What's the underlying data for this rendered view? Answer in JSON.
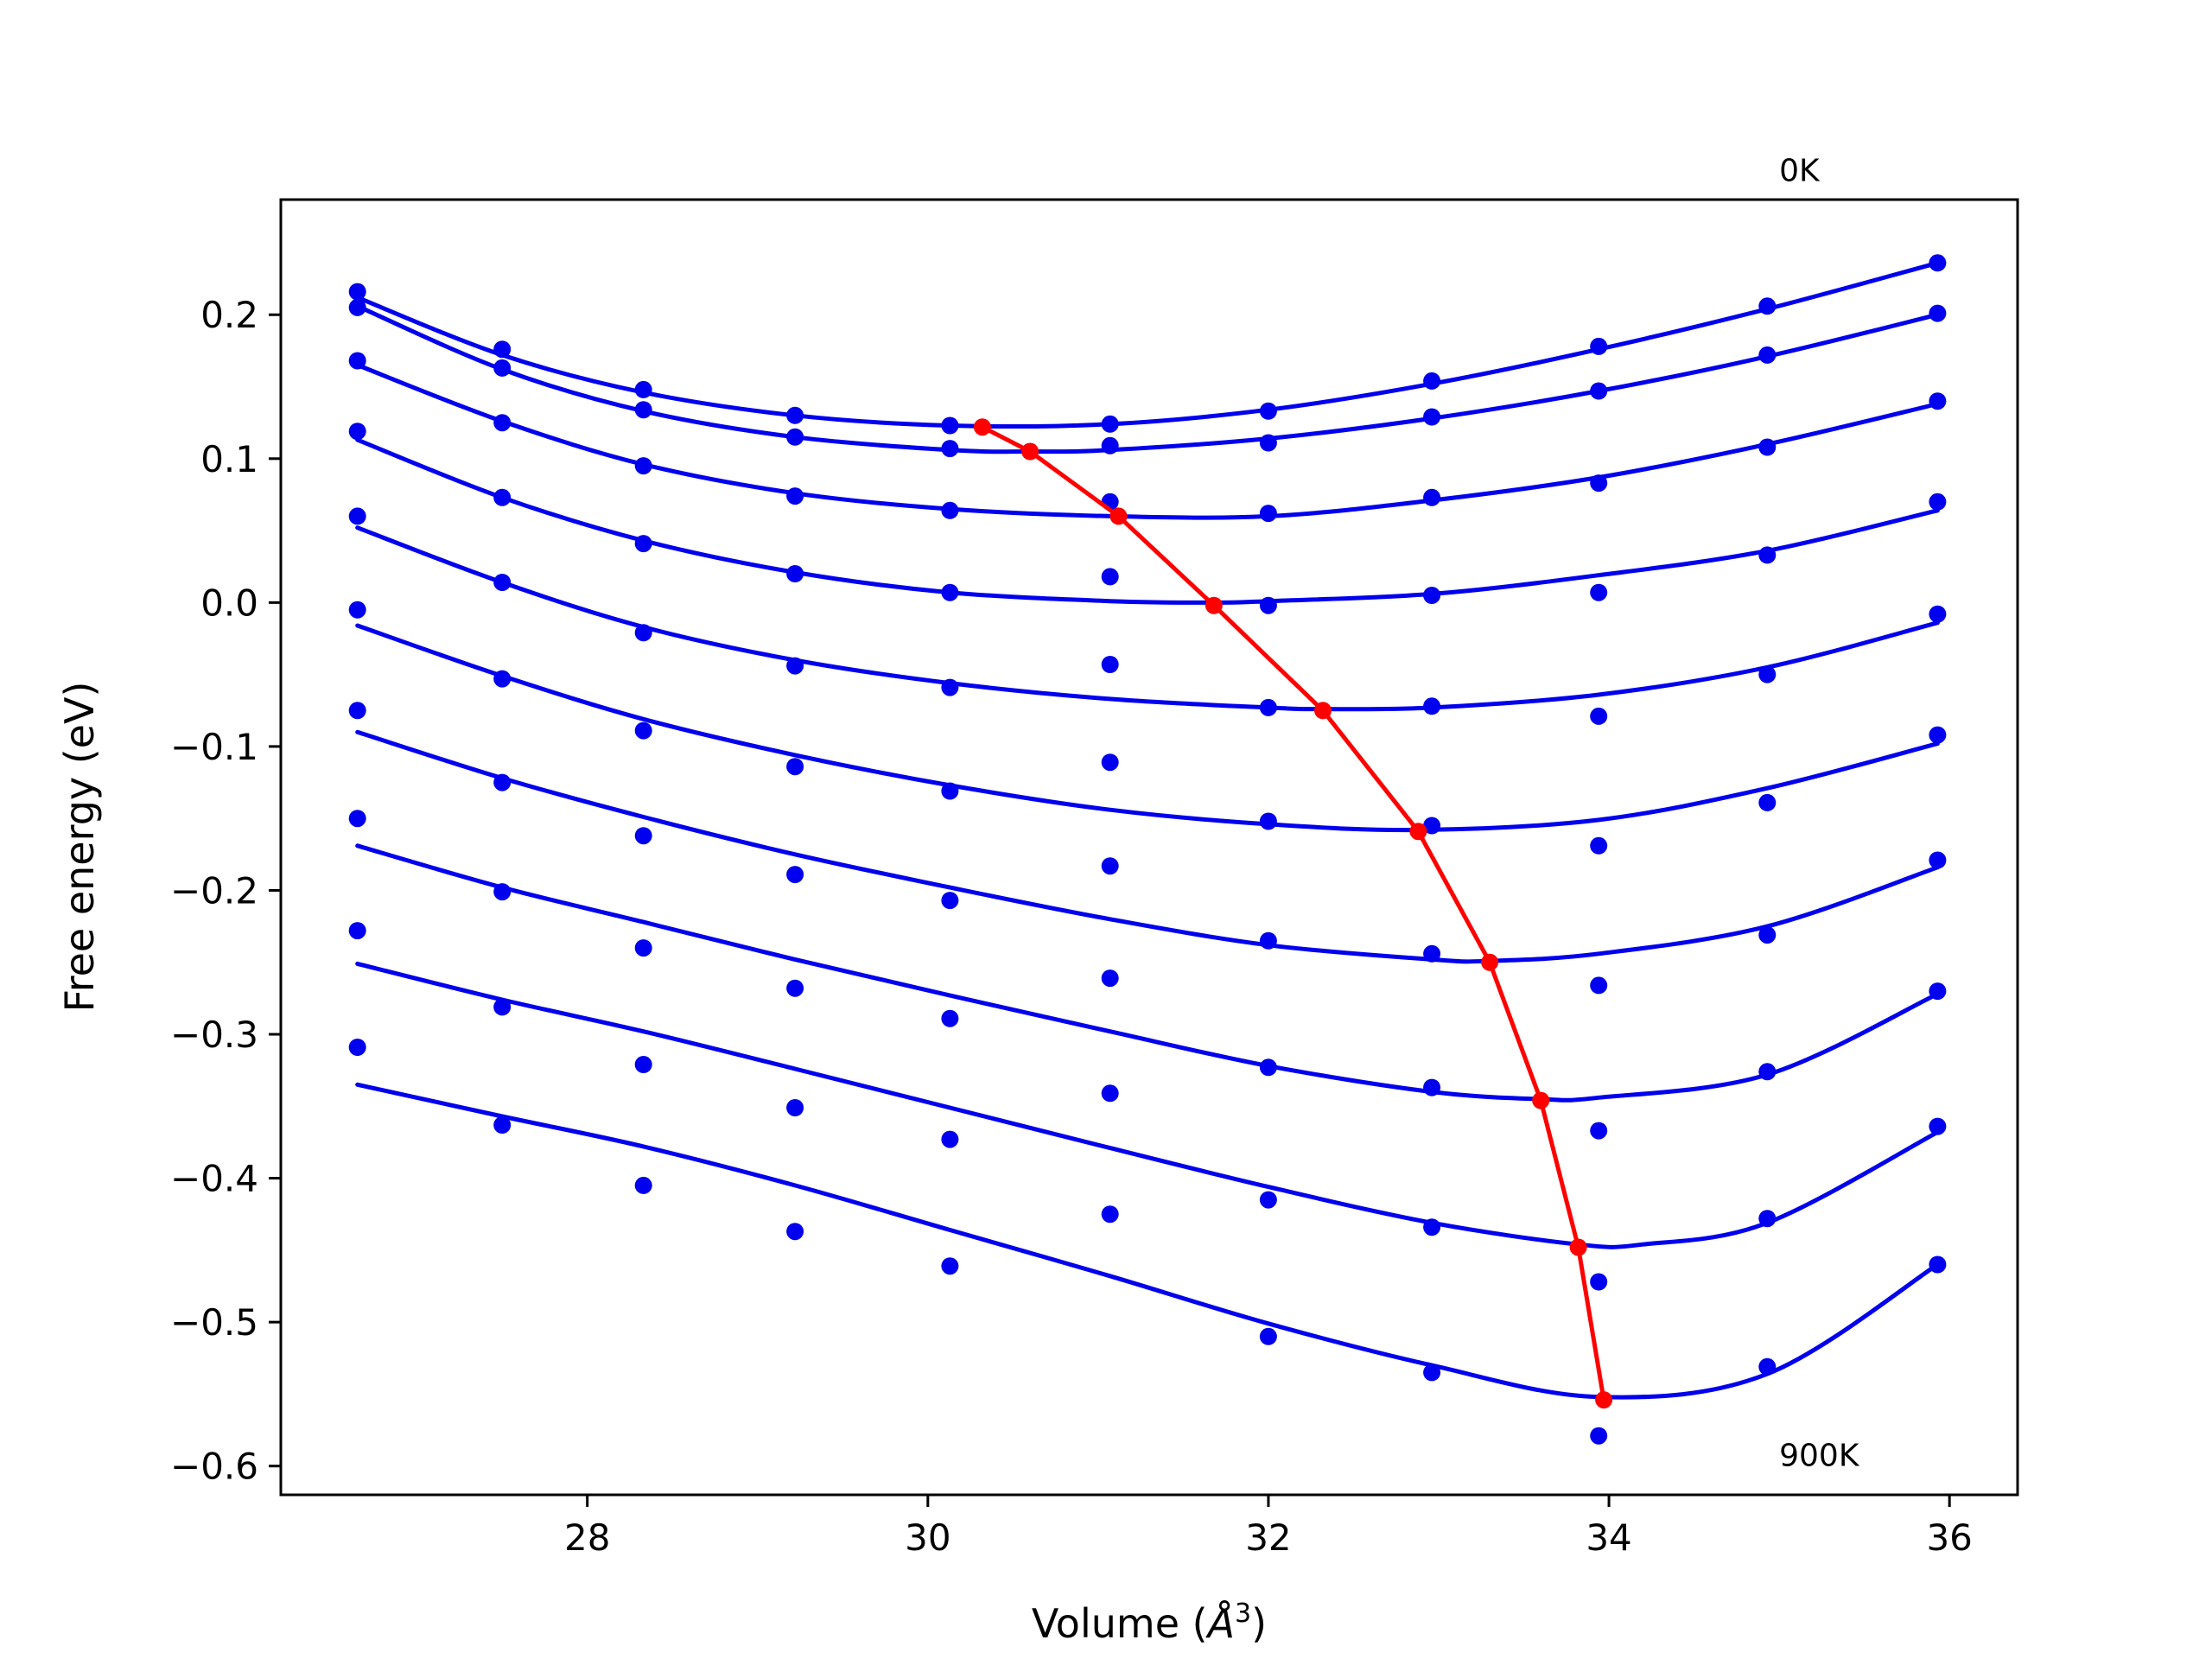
{
  "chart_data": {
    "type": "line",
    "xlabel_main": "Volume (",
    "xlabel_sym": "Å",
    "xlabel_exp": "3",
    "xlabel_end": ")",
    "ylabel": "Free energy (eV)",
    "xlim": [
      26.2,
      36.4
    ],
    "ylim": [
      -0.62,
      0.28
    ],
    "xticks": [
      {
        "value": 28,
        "label": "28"
      },
      {
        "value": 30,
        "label": "30"
      },
      {
        "value": 32,
        "label": "32"
      },
      {
        "value": 34,
        "label": "34"
      },
      {
        "value": 36,
        "label": "36"
      }
    ],
    "yticks": [
      {
        "value": 0.2,
        "label": "0.2"
      },
      {
        "value": 0.1,
        "label": "0.1"
      },
      {
        "value": 0.0,
        "label": "0.0"
      },
      {
        "value": -0.1,
        "label": "−0.1"
      },
      {
        "value": -0.2,
        "label": "−0.2"
      },
      {
        "value": -0.3,
        "label": "−0.3"
      },
      {
        "value": -0.4,
        "label": "−0.4"
      },
      {
        "value": -0.5,
        "label": "−0.5"
      },
      {
        "value": -0.6,
        "label": "−0.6"
      }
    ],
    "annotations": [
      {
        "text": "0K",
        "x": 35.0,
        "y": 0.293
      },
      {
        "text": "900K",
        "x": 35.0,
        "y": -0.6
      }
    ],
    "volumes": [
      26.65,
      27.5,
      28.33,
      29.22,
      30.13,
      31.07,
      32.0,
      32.96,
      33.94,
      34.93,
      35.93
    ],
    "point_series": [
      [
        0.216,
        0.176,
        0.148,
        0.13,
        0.123,
        0.124,
        0.133,
        0.154,
        0.178,
        0.206,
        0.236
      ],
      [
        0.205,
        0.163,
        0.134,
        0.115,
        0.107,
        0.109,
        0.111,
        0.129,
        0.147,
        0.172,
        0.201
      ],
      [
        0.168,
        0.125,
        0.095,
        0.074,
        0.064,
        0.07,
        0.062,
        0.073,
        0.083,
        0.108,
        0.14
      ],
      [
        0.119,
        0.073,
        0.041,
        0.02,
        0.007,
        0.018,
        -0.002,
        0.005,
        0.007,
        0.033,
        0.07
      ],
      [
        0.06,
        0.014,
        -0.021,
        -0.044,
        -0.059,
        -0.043,
        -0.073,
        -0.072,
        -0.079,
        -0.05,
        -0.008
      ],
      [
        -0.005,
        -0.053,
        -0.089,
        -0.114,
        -0.131,
        -0.111,
        -0.152,
        -0.155,
        -0.169,
        -0.139,
        -0.092
      ],
      [
        -0.075,
        -0.125,
        -0.162,
        -0.189,
        -0.207,
        -0.183,
        -0.235,
        -0.244,
        -0.266,
        -0.231,
        -0.179
      ],
      [
        -0.15,
        -0.201,
        -0.24,
        -0.268,
        -0.289,
        -0.261,
        -0.323,
        -0.337,
        -0.367,
        -0.326,
        -0.27
      ],
      [
        -0.228,
        -0.281,
        -0.321,
        -0.351,
        -0.373,
        -0.341,
        -0.415,
        -0.434,
        -0.472,
        -0.428,
        -0.364
      ],
      [
        -0.309,
        -0.363,
        -0.405,
        -0.437,
        -0.461,
        -0.425,
        -0.51,
        -0.535,
        -0.579,
        -0.531,
        -0.46
      ]
    ],
    "fit_curves": [
      [
        [
          26.65,
          0.212
        ],
        [
          27.5,
          0.172
        ],
        [
          28.33,
          0.146
        ],
        [
          29.22,
          0.13
        ],
        [
          30.13,
          0.123
        ],
        [
          31.07,
          0.124
        ],
        [
          32.0,
          0.134
        ],
        [
          32.96,
          0.152
        ],
        [
          33.94,
          0.176
        ],
        [
          34.93,
          0.204
        ],
        [
          35.93,
          0.236
        ]
      ],
      [
        [
          26.65,
          0.206
        ],
        [
          27.5,
          0.162
        ],
        [
          28.33,
          0.133
        ],
        [
          29.22,
          0.115
        ],
        [
          30.13,
          0.106
        ],
        [
          30.6,
          0.105
        ],
        [
          31.07,
          0.106
        ],
        [
          32.0,
          0.114
        ],
        [
          32.96,
          0.128
        ],
        [
          33.94,
          0.147
        ],
        [
          34.93,
          0.171
        ],
        [
          35.93,
          0.2
        ]
      ],
      [
        [
          26.65,
          0.165
        ],
        [
          27.5,
          0.126
        ],
        [
          28.33,
          0.096
        ],
        [
          29.22,
          0.076
        ],
        [
          30.13,
          0.065
        ],
        [
          31.07,
          0.06
        ],
        [
          32.0,
          0.06
        ],
        [
          32.96,
          0.071
        ],
        [
          33.94,
          0.087
        ],
        [
          34.93,
          0.11
        ],
        [
          35.93,
          0.138
        ]
      ],
      [
        [
          26.65,
          0.113
        ],
        [
          27.5,
          0.073
        ],
        [
          28.33,
          0.043
        ],
        [
          29.22,
          0.021
        ],
        [
          30.13,
          0.007
        ],
        [
          31.07,
          0.001
        ],
        [
          31.68,
          0.0
        ],
        [
          32.0,
          0.001
        ],
        [
          32.96,
          0.006
        ],
        [
          33.94,
          0.019
        ],
        [
          34.93,
          0.036
        ],
        [
          35.93,
          0.064
        ]
      ],
      [
        [
          26.65,
          0.052
        ],
        [
          27.5,
          0.014
        ],
        [
          28.33,
          -0.017
        ],
        [
          29.22,
          -0.04
        ],
        [
          30.13,
          -0.056
        ],
        [
          31.07,
          -0.067
        ],
        [
          32.0,
          -0.073
        ],
        [
          32.32,
          -0.074
        ],
        [
          32.96,
          -0.073
        ],
        [
          33.94,
          -0.064
        ],
        [
          34.93,
          -0.045
        ],
        [
          35.93,
          -0.014
        ]
      ],
      [
        [
          26.65,
          -0.016
        ],
        [
          27.5,
          -0.051
        ],
        [
          28.33,
          -0.081
        ],
        [
          29.22,
          -0.106
        ],
        [
          30.13,
          -0.127
        ],
        [
          31.07,
          -0.144
        ],
        [
          32.0,
          -0.154
        ],
        [
          32.89,
          -0.158
        ],
        [
          33.94,
          -0.151
        ],
        [
          34.93,
          -0.129
        ],
        [
          35.93,
          -0.098
        ]
      ],
      [
        [
          26.65,
          -0.09
        ],
        [
          27.5,
          -0.122
        ],
        [
          28.33,
          -0.149
        ],
        [
          29.22,
          -0.175
        ],
        [
          30.13,
          -0.198
        ],
        [
          31.07,
          -0.22
        ],
        [
          32.0,
          -0.238
        ],
        [
          32.96,
          -0.248
        ],
        [
          33.3,
          -0.249
        ],
        [
          33.94,
          -0.244
        ],
        [
          34.93,
          -0.225
        ],
        [
          35.93,
          -0.184
        ]
      ],
      [
        [
          26.65,
          -0.169
        ],
        [
          27.5,
          -0.198
        ],
        [
          28.33,
          -0.222
        ],
        [
          29.22,
          -0.248
        ],
        [
          30.13,
          -0.273
        ],
        [
          31.07,
          -0.298
        ],
        [
          32.0,
          -0.322
        ],
        [
          32.96,
          -0.34
        ],
        [
          33.6,
          -0.345
        ],
        [
          33.94,
          -0.344
        ],
        [
          34.93,
          -0.328
        ],
        [
          35.93,
          -0.272
        ]
      ],
      [
        [
          26.65,
          -0.251
        ],
        [
          27.5,
          -0.276
        ],
        [
          28.33,
          -0.298
        ],
        [
          29.22,
          -0.324
        ],
        [
          30.13,
          -0.351
        ],
        [
          31.07,
          -0.379
        ],
        [
          32.0,
          -0.406
        ],
        [
          32.96,
          -0.431
        ],
        [
          33.82,
          -0.446
        ],
        [
          34.2,
          -0.446
        ],
        [
          34.93,
          -0.431
        ],
        [
          35.93,
          -0.368
        ]
      ],
      [
        [
          26.65,
          -0.335
        ],
        [
          27.5,
          -0.357
        ],
        [
          28.33,
          -0.378
        ],
        [
          29.22,
          -0.405
        ],
        [
          30.13,
          -0.436
        ],
        [
          31.07,
          -0.468
        ],
        [
          32.0,
          -0.501
        ],
        [
          32.96,
          -0.53
        ],
        [
          33.94,
          -0.552
        ],
        [
          34.93,
          -0.536
        ],
        [
          35.93,
          -0.46
        ]
      ]
    ],
    "minima": {
      "x": [
        30.32,
        30.6,
        31.12,
        31.68,
        32.32,
        32.88,
        33.3,
        33.6,
        33.82,
        33.97
      ],
      "y": [
        0.122,
        0.105,
        0.06,
        -0.002,
        -0.075,
        -0.159,
        -0.25,
        -0.346,
        -0.448,
        -0.554
      ]
    },
    "colors": {
      "curve": "#0000ee",
      "points": "#0000ee",
      "minima_line": "#ff0000",
      "axes": "#000000",
      "background": "#ffffff"
    },
    "grid": false,
    "legend": "none"
  }
}
